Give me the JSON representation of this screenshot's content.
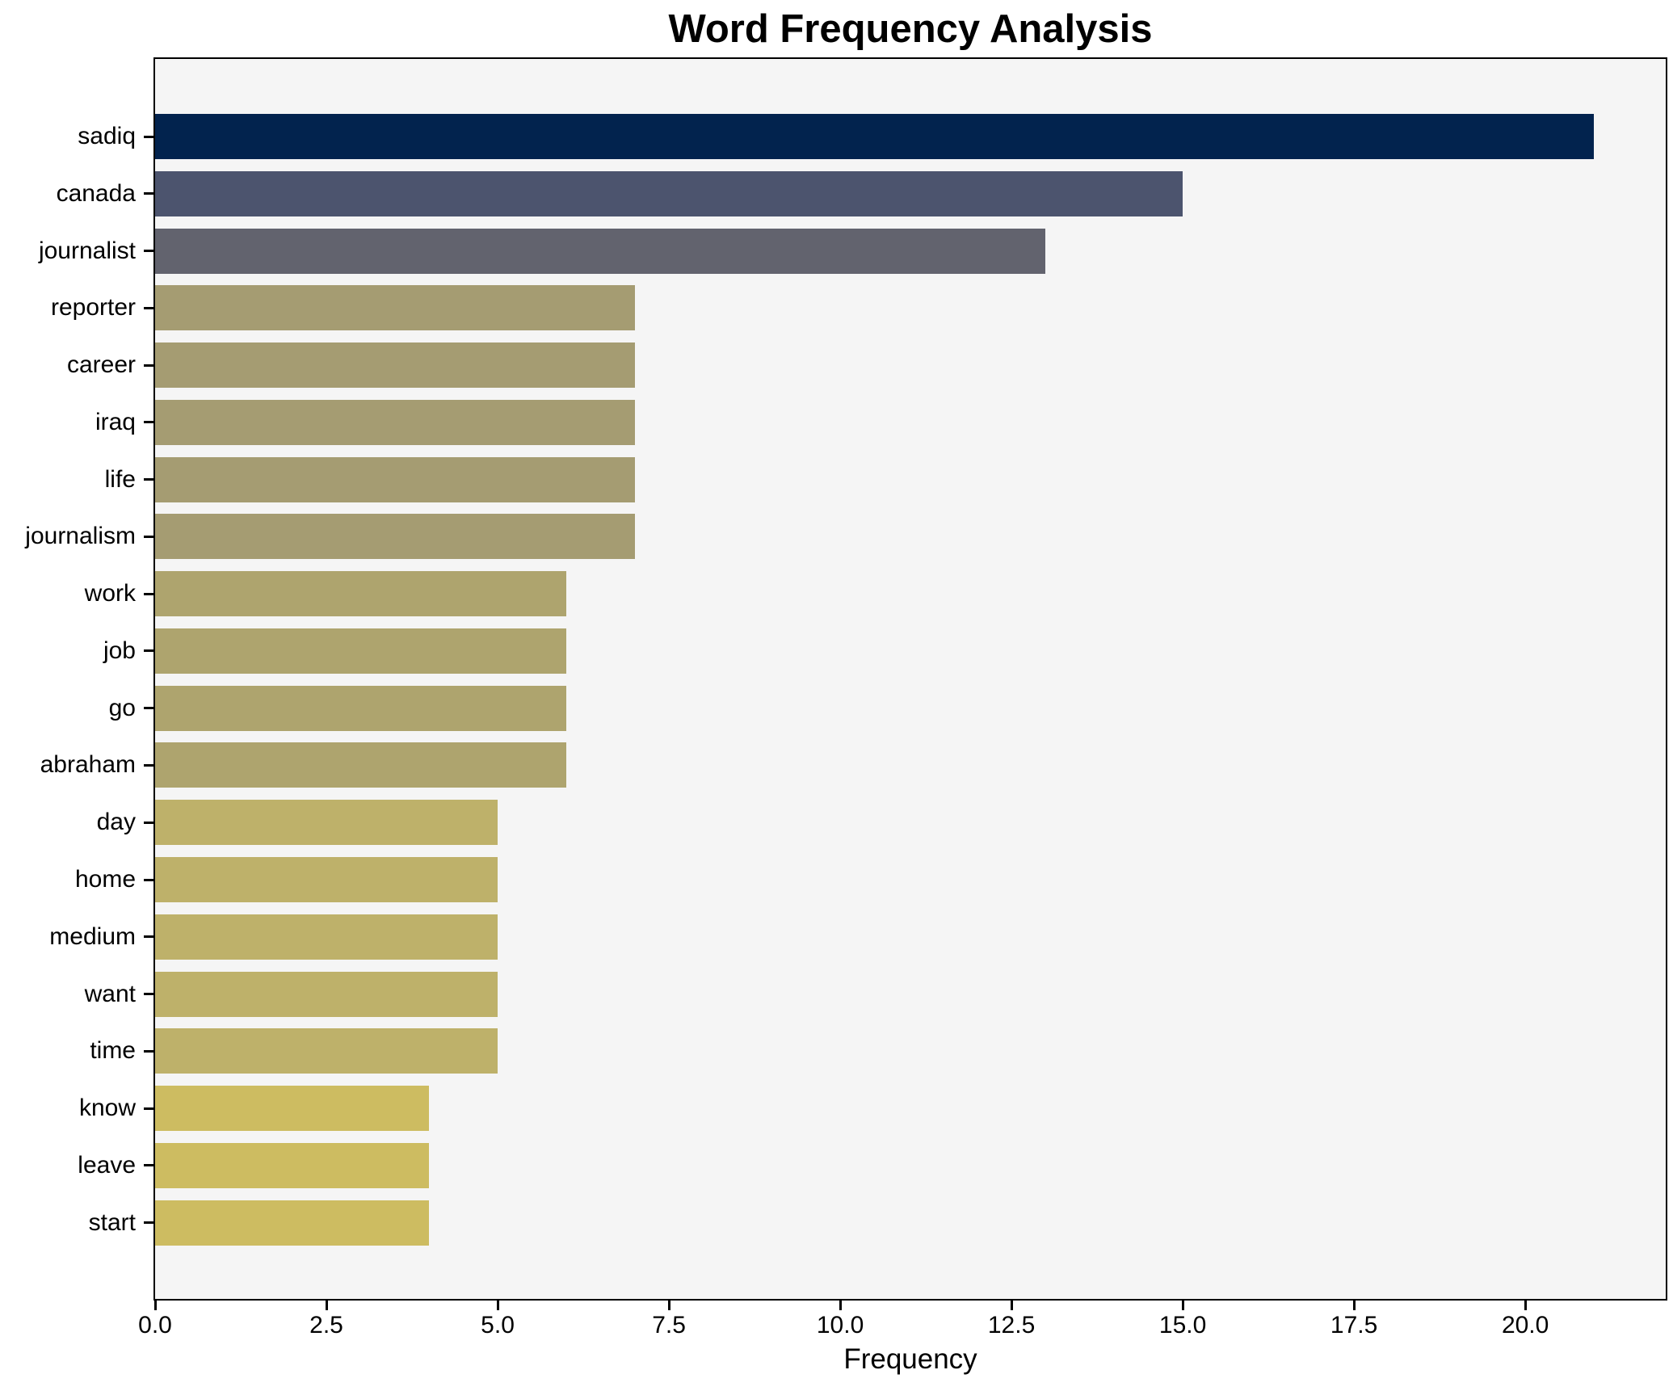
{
  "figure": {
    "background": "#ffffff",
    "plot_background": "#f5f5f5",
    "frame_color": "#000000"
  },
  "chart_data": {
    "type": "bar",
    "orientation": "horizontal",
    "title": "Word Frequency Analysis",
    "xlabel": "Frequency",
    "ylabel": "",
    "categories": [
      "sadiq",
      "canada",
      "journalist",
      "reporter",
      "career",
      "iraq",
      "life",
      "journalism",
      "work",
      "job",
      "go",
      "abraham",
      "day",
      "home",
      "medium",
      "want",
      "time",
      "know",
      "leave",
      "start"
    ],
    "values": [
      21,
      15,
      13,
      7,
      7,
      7,
      7,
      7,
      6,
      6,
      6,
      6,
      5,
      5,
      5,
      5,
      5,
      4,
      4,
      4
    ],
    "bar_colors": [
      "#02234e",
      "#4c546e",
      "#62636e",
      "#a59c72",
      "#a59c72",
      "#a59c72",
      "#a59c72",
      "#a59c72",
      "#aea46e",
      "#aea46e",
      "#aea46e",
      "#aea46e",
      "#beb16a",
      "#beb16a",
      "#beb16a",
      "#beb16a",
      "#beb16a",
      "#cdbc61",
      "#cdbc61",
      "#cdbc61"
    ],
    "xlim": [
      0,
      22.05
    ],
    "x_tick_values": [
      0,
      2.5,
      5,
      7.5,
      10,
      12.5,
      15,
      17.5,
      20
    ],
    "x_tick_labels": [
      "0.0",
      "2.5",
      "5.0",
      "7.5",
      "10.0",
      "12.5",
      "15.0",
      "17.5",
      "20.0"
    ],
    "grid": false,
    "legend": null
  }
}
